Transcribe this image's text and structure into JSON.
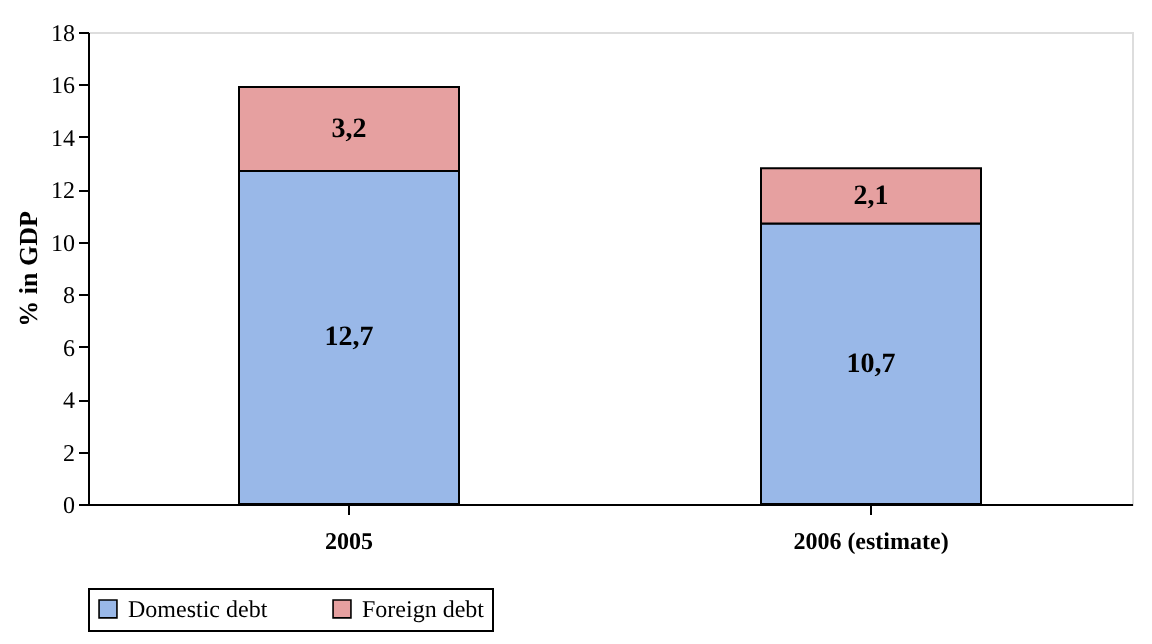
{
  "chart_data": {
    "type": "bar",
    "stacked": true,
    "ylabel": "% in GDP",
    "categories": [
      "2005",
      "2006 (estimate)"
    ],
    "series": [
      {
        "name": "Domestic debt",
        "color": "#99b8e8",
        "values": [
          12.7,
          10.7
        ],
        "value_labels": [
          "12,7",
          "10,7"
        ]
      },
      {
        "name": "Foreign debt",
        "color": "#e6a0a0",
        "values": [
          3.2,
          2.1
        ],
        "value_labels": [
          "3,2",
          "2,1"
        ]
      }
    ],
    "ylim": [
      0,
      18
    ],
    "yticks": [
      0,
      2,
      4,
      6,
      8,
      10,
      12,
      14,
      16,
      18
    ],
    "grid": false,
    "legend": "bottom"
  }
}
